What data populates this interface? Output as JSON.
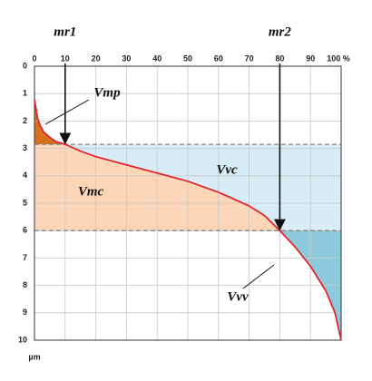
{
  "chart_data": {
    "type": "line",
    "x": [
      0,
      1,
      2,
      3,
      5,
      7,
      10,
      15,
      20,
      30,
      40,
      50,
      60,
      70,
      75,
      80,
      85,
      90,
      95,
      98,
      100
    ],
    "values": [
      1.2,
      1.9,
      2.2,
      2.4,
      2.6,
      2.75,
      2.85,
      3.1,
      3.3,
      3.6,
      3.9,
      4.2,
      4.6,
      5.1,
      5.45,
      6.0,
      6.6,
      7.3,
      8.2,
      9.0,
      10
    ],
    "color": "#e0262f",
    "xlim": [
      0,
      100
    ],
    "ylim": [
      0,
      10
    ],
    "y_reversed": true,
    "grid": true,
    "xticks": [
      0,
      10,
      20,
      30,
      40,
      50,
      60,
      70,
      80,
      90,
      {
        "value": 100,
        "label": "100 %"
      }
    ],
    "yticks": [
      0,
      1,
      2,
      3,
      4,
      5,
      6,
      7,
      8,
      9,
      10
    ],
    "y_label": "µm",
    "markers": [
      {
        "label": "mr1",
        "x": 10
      },
      {
        "label": "mr2",
        "x": 80
      }
    ],
    "regions": [
      {
        "label": "Vmp",
        "color": "#d8701e"
      },
      {
        "label": "Vmc",
        "color": "#fbd6b8"
      },
      {
        "label": "Vvc",
        "color": "#d7ecf5"
      },
      {
        "label": "Vvv",
        "color": "#8cc9dc"
      }
    ]
  }
}
